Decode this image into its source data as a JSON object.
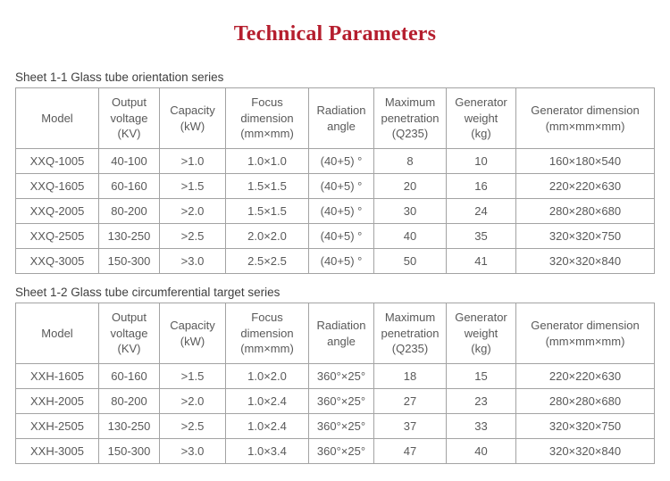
{
  "page": {
    "title": "Technical Parameters",
    "title_color": "#b51e2e",
    "text_color": "#595959",
    "border_color": "#a3a3a3"
  },
  "tables": [
    {
      "caption": "Sheet 1-1 Glass tube orientation series",
      "headers": [
        "Model",
        "Output\nvoltage\n(KV)",
        "Capacity\n(kW)",
        "Focus\ndimension\n(mm×mm)",
        "Radiation\nangle",
        "Maximum\npenetration\n(Q235)",
        "Generator\nweight\n(kg)",
        "Generator dimension\n(mm×mm×mm)"
      ],
      "rows": [
        [
          "XXQ-1005",
          "40-100",
          ">1.0",
          "1.0×1.0",
          "(40+5) °",
          "8",
          "10",
          "160×180×540"
        ],
        [
          "XXQ-1605",
          "60-160",
          ">1.5",
          "1.5×1.5",
          "(40+5) °",
          "20",
          "16",
          "220×220×630"
        ],
        [
          "XXQ-2005",
          "80-200",
          ">2.0",
          "1.5×1.5",
          "(40+5) °",
          "30",
          "24",
          "280×280×680"
        ],
        [
          "XXQ-2505",
          "130-250",
          ">2.5",
          "2.0×2.0",
          "(40+5) °",
          "40",
          "35",
          "320×320×750"
        ],
        [
          "XXQ-3005",
          "150-300",
          ">3.0",
          "2.5×2.5",
          "(40+5) °",
          "50",
          "41",
          "320×320×840"
        ]
      ]
    },
    {
      "caption": "Sheet 1-2 Glass tube circumferential target series",
      "headers": [
        "Model",
        "Output\nvoltage\n(KV)",
        "Capacity\n(kW)",
        "Focus\ndimension\n(mm×mm)",
        "Radiation\nangle",
        "Maximum\npenetration\n(Q235)",
        "Generator\nweight\n(kg)",
        "Generator dimension\n(mm×mm×mm)"
      ],
      "rows": [
        [
          "XXH-1605",
          "60-160",
          ">1.5",
          "1.0×2.0",
          "360°×25°",
          "18",
          "15",
          "220×220×630"
        ],
        [
          "XXH-2005",
          "80-200",
          ">2.0",
          "1.0×2.4",
          "360°×25°",
          "27",
          "23",
          "280×280×680"
        ],
        [
          "XXH-2505",
          "130-250",
          ">2.5",
          "1.0×2.4",
          "360°×25°",
          "37",
          "33",
          "320×320×750"
        ],
        [
          "XXH-3005",
          "150-300",
          ">3.0",
          "1.0×3.4",
          "360°×25°",
          "47",
          "40",
          "320×320×840"
        ]
      ]
    }
  ]
}
